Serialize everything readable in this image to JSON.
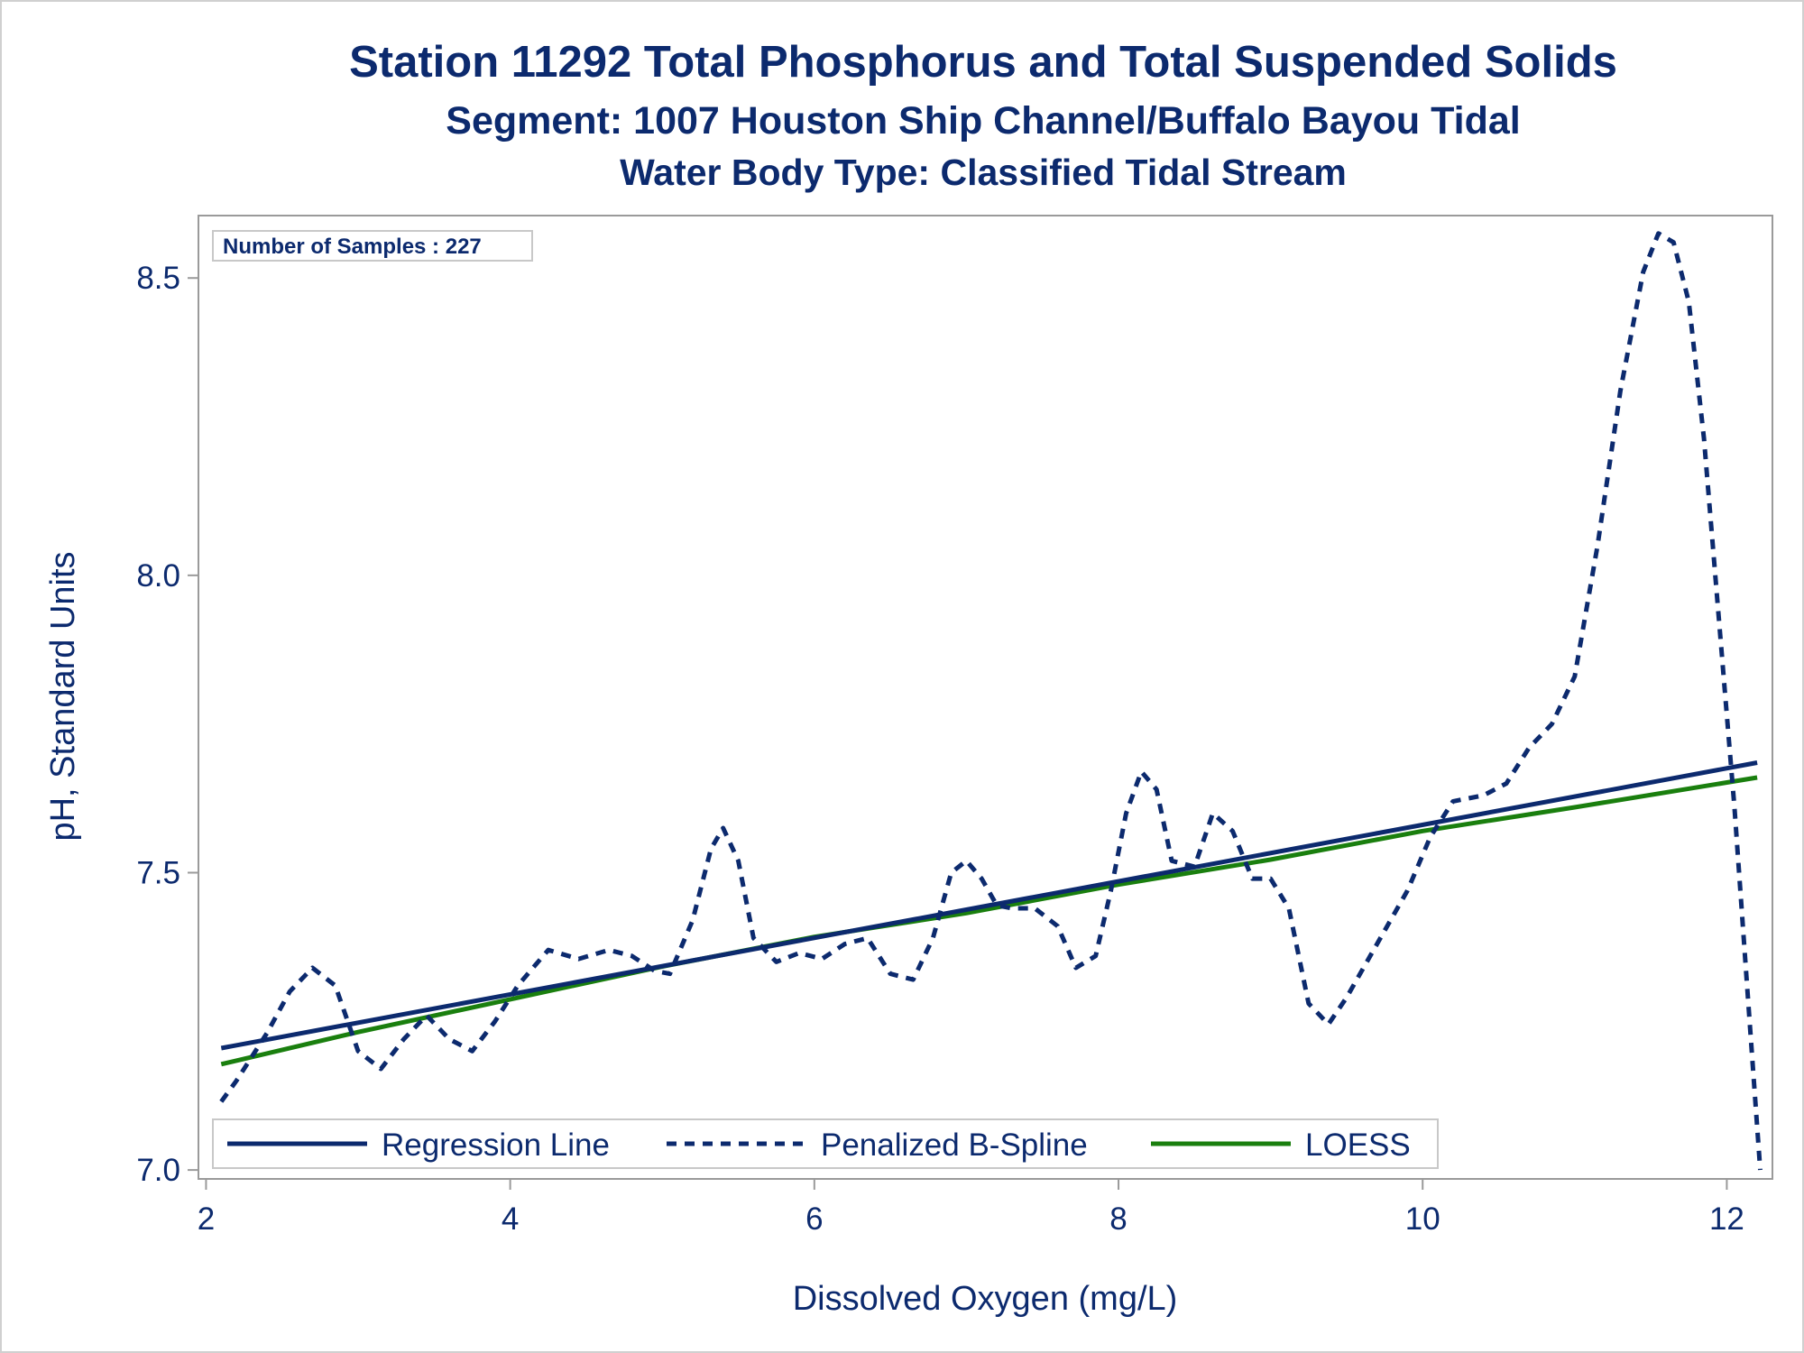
{
  "chart_data": {
    "type": "line",
    "title": "Station 11292  Total Phosphorus and Total Suspended Solids",
    "subtitle": "Segment: 1007  Houston Ship Channel/Buffalo Bayou Tidal",
    "subtitle2": "Water Body Type: Classified Tidal Stream",
    "xlabel": "Dissolved Oxygen (mg/L)",
    "ylabel": "pH, Standard Units",
    "xlim": [
      1.95,
      12.3
    ],
    "ylim": [
      6.985,
      8.605
    ],
    "xticks": [
      2,
      4,
      6,
      8,
      10,
      12
    ],
    "xtick_labels": [
      "2",
      "4",
      "6",
      "8",
      "10",
      "12"
    ],
    "yticks": [
      7.0,
      7.5,
      8.0,
      8.5
    ],
    "ytick_labels": [
      "7.0",
      "7.5",
      "8.0",
      "8.5"
    ],
    "grid": false,
    "legend_position": "bottom-inside",
    "annotation": "Number of Samples : 227",
    "series": [
      {
        "name": "Regression Line",
        "style": "solid",
        "color": "#0c2a6e",
        "x": [
          2.1,
          12.2
        ],
        "y": [
          7.205,
          7.685
        ]
      },
      {
        "name": "Penalized B-Spline",
        "style": "dashed",
        "color": "#0c2a6e",
        "x": [
          2.1,
          2.2,
          2.4,
          2.55,
          2.7,
          2.85,
          3.0,
          3.15,
          3.3,
          3.45,
          3.6,
          3.75,
          3.9,
          4.05,
          4.25,
          4.45,
          4.65,
          4.8,
          4.95,
          5.05,
          5.2,
          5.32,
          5.4,
          5.5,
          5.6,
          5.75,
          5.9,
          6.05,
          6.2,
          6.35,
          6.5,
          6.65,
          6.78,
          6.9,
          7.0,
          7.1,
          7.2,
          7.3,
          7.45,
          7.6,
          7.72,
          7.85,
          7.95,
          8.05,
          8.15,
          8.25,
          8.35,
          8.5,
          8.62,
          8.75,
          8.88,
          9.0,
          9.12,
          9.25,
          9.38,
          9.5,
          9.7,
          9.9,
          10.05,
          10.2,
          10.4,
          10.55,
          10.7,
          10.85,
          11.0,
          11.15,
          11.3,
          11.45,
          11.55,
          11.65,
          11.75,
          11.85,
          11.95,
          12.05,
          12.15,
          12.22
        ],
        "y": [
          7.115,
          7.15,
          7.23,
          7.3,
          7.34,
          7.31,
          7.2,
          7.17,
          7.22,
          7.26,
          7.22,
          7.2,
          7.25,
          7.31,
          7.37,
          7.355,
          7.37,
          7.36,
          7.335,
          7.33,
          7.42,
          7.54,
          7.575,
          7.52,
          7.39,
          7.35,
          7.365,
          7.355,
          7.38,
          7.39,
          7.33,
          7.32,
          7.39,
          7.5,
          7.52,
          7.49,
          7.445,
          7.44,
          7.44,
          7.41,
          7.34,
          7.36,
          7.47,
          7.6,
          7.67,
          7.64,
          7.52,
          7.51,
          7.6,
          7.57,
          7.49,
          7.49,
          7.44,
          7.28,
          7.245,
          7.29,
          7.38,
          7.47,
          7.56,
          7.62,
          7.63,
          7.65,
          7.71,
          7.75,
          7.83,
          8.05,
          8.31,
          8.51,
          8.575,
          8.56,
          8.46,
          8.23,
          7.92,
          7.61,
          7.25,
          7.0
        ]
      },
      {
        "name": "LOESS",
        "style": "solid",
        "color": "#1a7f0e",
        "x": [
          2.1,
          3,
          4,
          5,
          6,
          7,
          8,
          9,
          10,
          11,
          12.2
        ],
        "y": [
          7.178,
          7.232,
          7.287,
          7.342,
          7.392,
          7.432,
          7.48,
          7.522,
          7.57,
          7.61,
          7.66
        ]
      }
    ]
  }
}
